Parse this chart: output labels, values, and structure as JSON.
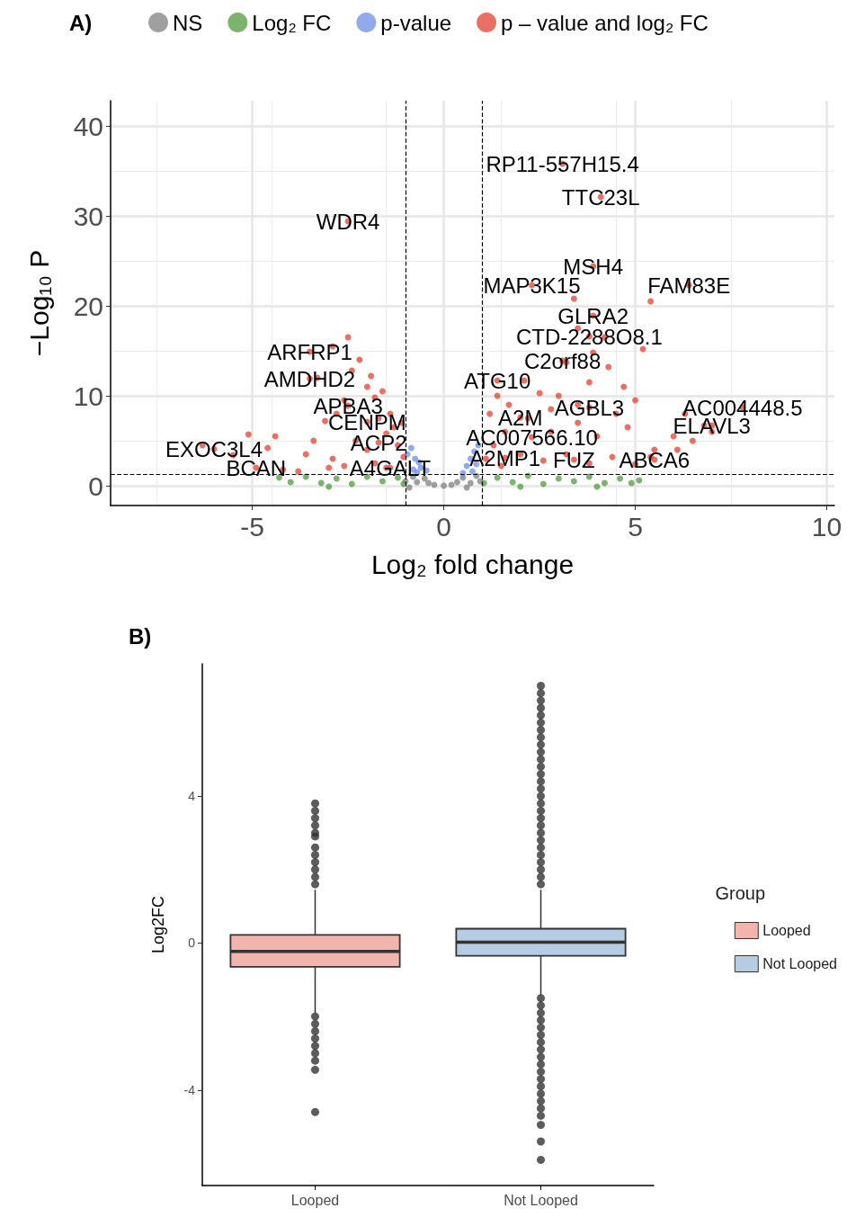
{
  "chart_data": [
    {
      "type": "scatter",
      "title": "A)",
      "xlabel": "Log₂ fold change",
      "ylabel": "−Log₁₀ P",
      "xlim": [
        -8.7,
        10.2
      ],
      "xticks": [
        -5,
        0,
        5,
        10
      ],
      "ylim": [
        -2.2,
        42.8
      ],
      "yticks": [
        0,
        10,
        20,
        30,
        40
      ],
      "grid": true,
      "legend": "top",
      "marker": "circle",
      "ref_lines": [
        {
          "axis": "x",
          "value": -1,
          "line_style": "dashed"
        },
        {
          "axis": "x",
          "value": 1,
          "line_style": "dashed"
        },
        {
          "axis": "y",
          "value": 1.3,
          "line_style": "dashed"
        }
      ],
      "series": [
        {
          "name": "NS",
          "color": "#7f7f7f",
          "x": [
            -1.0,
            -0.8,
            -0.7,
            -0.5,
            -0.4,
            -0.25,
            0,
            0.2,
            0.35,
            0.5,
            0.7,
            0.85,
            0.95,
            -0.9,
            0.6
          ],
          "values": [
            0.5,
            1.0,
            0.4,
            0.8,
            0.3,
            0.1,
            0.0,
            0.1,
            0.4,
            0.9,
            0.3,
            1.1,
            0.5,
            -0.2,
            -0.2
          ]
        },
        {
          "name": "Log₂ FC",
          "color": "#4f9a3f",
          "x": [
            -4.3,
            -4.0,
            -3.6,
            -3.2,
            -2.8,
            -2.4,
            -2.0,
            -1.6,
            -1.2,
            -1.05,
            1.05,
            1.4,
            1.8,
            2.2,
            2.6,
            3.0,
            3.4,
            3.8,
            4.2,
            4.6,
            4.9,
            5.1,
            -3.0,
            2.0,
            4.0
          ],
          "values": [
            0.9,
            0.4,
            1.0,
            0.3,
            0.8,
            0.2,
            1.0,
            0.5,
            0.9,
            0.2,
            0.3,
            0.9,
            0.4,
            1.1,
            0.2,
            0.8,
            0.5,
            1.0,
            0.3,
            0.8,
            0.3,
            0.6,
            -0.1,
            -0.1,
            -0.1
          ]
        },
        {
          "name": "p-value",
          "color": "#6b8ee6",
          "x": [
            -0.75,
            -0.95,
            -0.65,
            -0.8,
            -0.7,
            -0.6,
            -0.85,
            -0.45,
            0.5,
            0.6,
            0.7,
            0.8,
            0.9,
            0.85,
            0.75
          ],
          "values": [
            3.0,
            3.5,
            2.6,
            1.8,
            1.5,
            2.0,
            4.2,
            1.7,
            1.4,
            2.2,
            3.0,
            3.8,
            4.5,
            2.4,
            1.6
          ]
        },
        {
          "name": "p – value and log₂ FC",
          "color": "#e4402f",
          "x": [
            -6.3,
            -5.5,
            -4.6,
            -4.4,
            -3.6,
            -3.4,
            -3.1,
            -2.9,
            -2.6,
            -2.5,
            -2.4,
            -2.2,
            -2.0,
            -1.9,
            -1.8,
            -1.7,
            -1.6,
            -1.5,
            -1.4,
            -1.3,
            -1.2,
            -1.1,
            -1.05,
            -2.8,
            -3.0,
            -2.3,
            -2.0,
            -1.8,
            -4.2,
            -3.8,
            -2.6,
            -1.5,
            -5.1,
            -3.3,
            -2.9,
            3.4,
            5.4,
            4.2,
            3.5,
            3.9,
            4.3,
            5.2,
            3.2,
            3.8,
            2.1,
            1.7,
            1.4,
            2.5,
            3.0,
            3.5,
            4.5,
            5.0,
            6.3,
            6.8,
            6.5,
            6.0,
            5.5,
            4.8,
            4.0,
            3.5,
            2.8,
            2.2,
            1.6,
            1.3,
            1.1,
            1.5,
            2.0,
            2.6,
            3.2,
            3.8,
            4.4,
            5.0,
            5.4,
            6.1,
            7.0,
            1.2,
            2.8,
            4.7,
            3.1,
            4.1,
            -2.5,
            3.9,
            2.3,
            6.4,
            3.9,
            3.8,
            3.1,
            -3.5,
            -3.5,
            1.4,
            -2.5,
            3.8,
            7.8,
            2.0,
            -2.0,
            7.0,
            2.3,
            -1.7,
            -6.0,
            1.6,
            3.4,
            5.5,
            -4.9,
            -1.4
          ],
          "values": [
            4.5,
            3.4,
            4.2,
            5.5,
            3.5,
            5.0,
            7.2,
            3.0,
            9.5,
            16.5,
            12.8,
            14.0,
            11.0,
            12.2,
            9.8,
            7.5,
            10.5,
            5.8,
            8.0,
            6.5,
            4.5,
            7.0,
            3.2,
            8.0,
            2.0,
            5.0,
            4.0,
            2.5,
            1.8,
            1.6,
            2.2,
            2.0,
            5.7,
            12.0,
            15.5,
            20.8,
            20.5,
            16.5,
            17.5,
            14.8,
            13.2,
            15.2,
            13.7,
            11.5,
            11.7,
            9.0,
            10.0,
            10.3,
            10.0,
            9.0,
            8.0,
            9.5,
            8.0,
            6.7,
            5.0,
            5.5,
            4.0,
            6.5,
            5.5,
            7.0,
            6.0,
            7.5,
            6.0,
            4.5,
            3.0,
            2.2,
            3.5,
            2.8,
            3.5,
            2.5,
            3.2,
            2.4,
            3.2,
            4.0,
            6.0,
            8.0,
            8.5,
            11.0,
            35.8,
            32.1,
            29.4,
            24.4,
            22.3,
            22.3,
            18.9,
            16.6,
            13.9,
            14.9,
            11.9,
            11.7,
            8.9,
            8.7,
            8.7,
            7.6,
            7.1,
            6.7,
            5.4,
            4.8,
            4.1,
            3.1,
            2.9,
            2.9,
            2.0,
            2.0
          ]
        }
      ],
      "annotations": [
        {
          "text": "RP11-557H15.4",
          "x": 3.1,
          "y": 35.8
        },
        {
          "text": "TTC23L",
          "x": 4.1,
          "y": 32.1
        },
        {
          "text": "WDR4",
          "x": -2.5,
          "y": 29.4
        },
        {
          "text": "MSH4",
          "x": 3.9,
          "y": 24.4
        },
        {
          "text": "MAP3K15",
          "x": 2.3,
          "y": 22.3
        },
        {
          "text": "FAM83E",
          "x": 6.4,
          "y": 22.3
        },
        {
          "text": "GLRA2",
          "x": 3.9,
          "y": 18.9
        },
        {
          "text": "CTD-2288O8.1",
          "x": 3.8,
          "y": 16.6
        },
        {
          "text": "C2orf88",
          "x": 3.1,
          "y": 13.9
        },
        {
          "text": "ARFRP1",
          "x": -3.5,
          "y": 14.9
        },
        {
          "text": "AMDHD2",
          "x": -3.5,
          "y": 11.9
        },
        {
          "text": "ATG10",
          "x": 1.4,
          "y": 11.7
        },
        {
          "text": "APBA3",
          "x": -2.5,
          "y": 8.9
        },
        {
          "text": "AGBL3",
          "x": 3.8,
          "y": 8.7
        },
        {
          "text": "AC004448.5",
          "x": 7.8,
          "y": 8.7
        },
        {
          "text": "A2M",
          "x": 2.0,
          "y": 7.6
        },
        {
          "text": "CENPM",
          "x": -2.0,
          "y": 7.1
        },
        {
          "text": "ELAVL3",
          "x": 7.0,
          "y": 6.7
        },
        {
          "text": "AC007566.10",
          "x": 2.3,
          "y": 5.4
        },
        {
          "text": "ACP2",
          "x": -1.7,
          "y": 4.8
        },
        {
          "text": "EXOC3L4",
          "x": -6.0,
          "y": 4.1
        },
        {
          "text": "A2MP1",
          "x": 1.6,
          "y": 3.1
        },
        {
          "text": "FUZ",
          "x": 3.4,
          "y": 2.9
        },
        {
          "text": "ABCA6",
          "x": 5.5,
          "y": 2.9
        },
        {
          "text": "BCAN",
          "x": -4.9,
          "y": 2.0
        },
        {
          "text": "A4GALT",
          "x": -1.4,
          "y": 2.0
        }
      ]
    },
    {
      "type": "box",
      "title": "B)",
      "ylabel": "Log2FC",
      "legend_title": "Group",
      "legend": "right",
      "categories": [
        "Looped",
        "Not Looped"
      ],
      "ylim": [
        -6.6,
        7.6
      ],
      "yticks": [
        -4,
        0,
        4
      ],
      "grid": false,
      "series": [
        {
          "name": "Looped",
          "color": "#f2b5ad",
          "boxes": [
            {
              "low": -1.9,
              "q1": -0.65,
              "median": -0.23,
              "q3": 0.22,
              "high": 1.45,
              "outliers": [
                3.8,
                3.6,
                3.4,
                3.2,
                3.0,
                2.9,
                2.6,
                2.4,
                2.2,
                2.0,
                1.8,
                1.6,
                -2.0,
                -2.2,
                -2.4,
                -2.6,
                -2.8,
                -3.0,
                -3.2,
                -3.45,
                -4.6
              ]
            },
            null
          ]
        },
        {
          "name": "Not Looped",
          "color": "#b6cce4",
          "boxes": [
            null,
            {
              "low": -1.42,
              "q1": -0.35,
              "median": 0.02,
              "q3": 0.39,
              "high": 1.45,
              "outliers": [
                7.0,
                6.8,
                6.6,
                6.4,
                6.2,
                6.0,
                5.8,
                5.6,
                5.4,
                5.2,
                5.0,
                4.8,
                4.6,
                4.4,
                4.2,
                4.0,
                3.8,
                3.6,
                3.4,
                3.2,
                3.0,
                2.8,
                2.6,
                2.4,
                2.2,
                2.0,
                1.8,
                1.6,
                -1.5,
                -1.7,
                -1.9,
                -2.1,
                -2.3,
                -2.5,
                -2.7,
                -2.9,
                -3.1,
                -3.3,
                -3.5,
                -3.7,
                -3.9,
                -4.1,
                -4.3,
                -4.5,
                -4.7,
                -4.95,
                -5.4,
                -5.9
              ]
            }
          ]
        }
      ]
    }
  ]
}
